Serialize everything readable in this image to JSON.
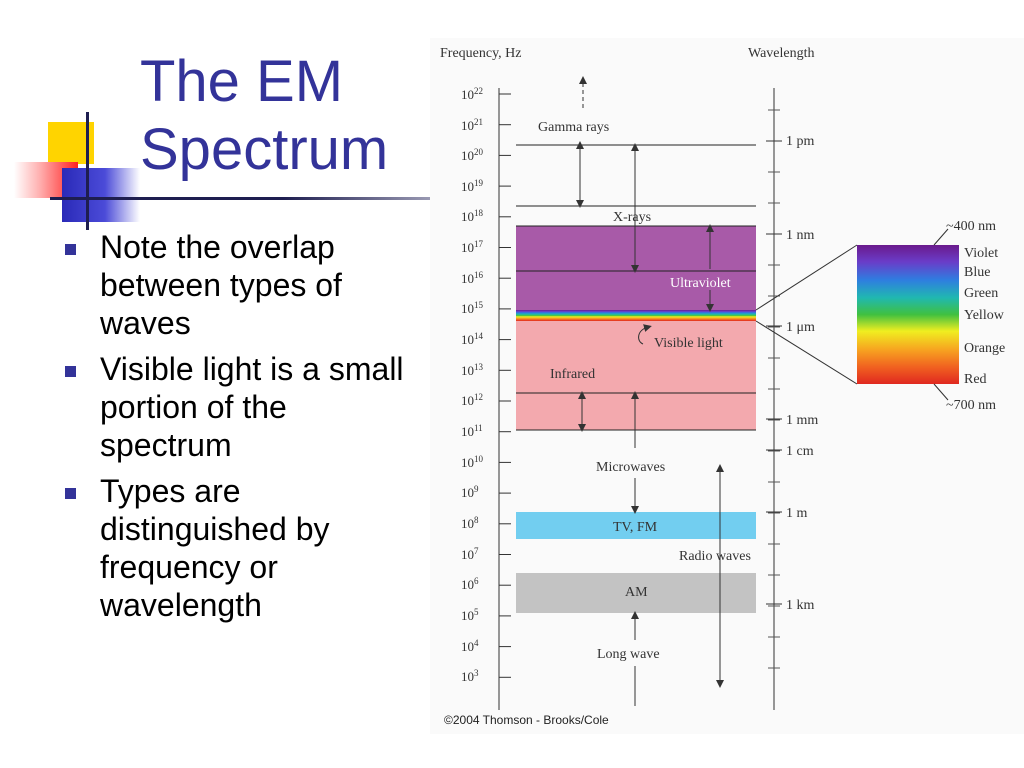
{
  "slide": {
    "title_lines": [
      "The EM",
      "Spectrum"
    ],
    "title_color": "#333399",
    "bullets": [
      "Note the overlap between types of waves",
      "Visible light is a small portion of the spectrum",
      "Types are distinguished by frequency or wavelength"
    ]
  },
  "figure": {
    "frequency_heading": "Frequency, Hz",
    "wavelength_heading": "Wavelength",
    "frequency_ticks": [
      {
        "base": "10",
        "exp": "22"
      },
      {
        "base": "10",
        "exp": "21"
      },
      {
        "base": "10",
        "exp": "20"
      },
      {
        "base": "10",
        "exp": "19"
      },
      {
        "base": "10",
        "exp": "18"
      },
      {
        "base": "10",
        "exp": "17"
      },
      {
        "base": "10",
        "exp": "16"
      },
      {
        "base": "10",
        "exp": "15"
      },
      {
        "base": "10",
        "exp": "14"
      },
      {
        "base": "10",
        "exp": "13"
      },
      {
        "base": "10",
        "exp": "12"
      },
      {
        "base": "10",
        "exp": "11"
      },
      {
        "base": "10",
        "exp": "10"
      },
      {
        "base": "10",
        "exp": "9"
      },
      {
        "base": "10",
        "exp": "8"
      },
      {
        "base": "10",
        "exp": "7"
      },
      {
        "base": "10",
        "exp": "6"
      },
      {
        "base": "10",
        "exp": "5"
      },
      {
        "base": "10",
        "exp": "4"
      },
      {
        "base": "10",
        "exp": "3"
      }
    ],
    "wavelength_labels": [
      "1 pm",
      "1 nm",
      "1 μm",
      "1 mm",
      "1 cm",
      "1 m",
      "1 km"
    ],
    "regions": {
      "gamma": "Gamma rays",
      "xrays": "X-rays",
      "ultraviolet": "Ultraviolet",
      "visible": "Visible light",
      "infrared": "Infrared",
      "microwaves": "Microwaves",
      "tvfm": "TV, FM",
      "radio": "Radio waves",
      "am": "AM",
      "longwave": "Long wave"
    },
    "visible_colors": [
      "Violet",
      "Blue",
      "Green",
      "Yellow",
      "Orange",
      "Red"
    ],
    "visible_top": "~400 nm",
    "visible_bottom": "~700 nm",
    "band_colors": {
      "ultraviolet": "#a85aa8",
      "infrared": "#f3a9ae",
      "tvfm": "#72cef0",
      "am": "#c3c3c3"
    },
    "credit": "©2004 Thomson - Brooks/Cole"
  }
}
